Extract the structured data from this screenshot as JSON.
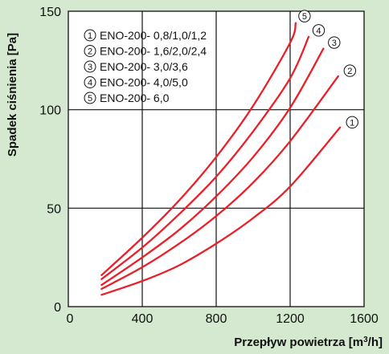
{
  "colors": {
    "background": "#D4E9CF",
    "plot_background": "#FFFFFF",
    "grid": "#111111",
    "series": "#E8202A",
    "text": "#111111"
  },
  "chart_data": {
    "type": "line",
    "xlabel": "Przepływ  powietrza [m³/h]",
    "ylabel": "Spadek  ciśnienia [Pa]",
    "xlim": [
      0,
      1600
    ],
    "ylim": [
      0,
      150
    ],
    "x_ticks": [
      0,
      400,
      800,
      1200,
      1600
    ],
    "y_ticks": [
      0,
      50,
      100,
      150
    ],
    "x_tick_labels": [
      "0",
      "400",
      "800",
      "1200",
      "1600"
    ],
    "y_tick_labels": [
      "0",
      "50",
      "100",
      "150"
    ],
    "grid": "major lines every 400 m³/h and every 50 Pa",
    "legend_placement": "top-left",
    "series": [
      {
        "marker": "①",
        "name": "ENO-200- 0,8/1,0/1,2",
        "x": [
          180,
          400,
          600,
          800,
          1000,
          1200,
          1470
        ],
        "y": [
          6,
          13,
          21,
          32,
          45,
          61,
          91
        ]
      },
      {
        "marker": "②",
        "name": "ENO-200- 1,6/2,0/2,4",
        "x": [
          180,
          400,
          600,
          800,
          1000,
          1200,
          1460
        ],
        "y": [
          9,
          20,
          32,
          46,
          63,
          84,
          117
        ]
      },
      {
        "marker": "③",
        "name": "ENO-200- 3,0/3,6",
        "x": [
          180,
          400,
          600,
          800,
          1000,
          1200,
          1380
        ],
        "y": [
          11,
          25,
          39,
          56,
          76,
          101,
          131
        ]
      },
      {
        "marker": "④",
        "name": "ENO-200- 4,0/5,0",
        "x": [
          180,
          400,
          600,
          800,
          1000,
          1200,
          1300
        ],
        "y": [
          14,
          30,
          47,
          66,
          89,
          116,
          137
        ]
      },
      {
        "marker": "⑤",
        "name": "ENO-200- 6,0",
        "x": [
          180,
          400,
          600,
          800,
          1000,
          1200,
          1230
        ],
        "y": [
          16,
          35,
          54,
          76,
          102,
          134,
          144
        ]
      }
    ]
  }
}
